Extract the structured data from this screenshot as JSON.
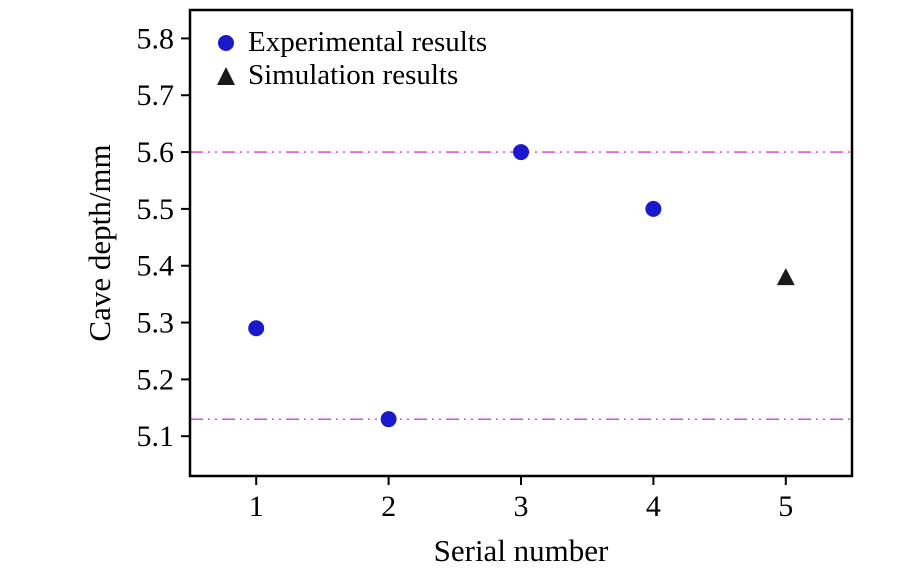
{
  "chart_data": {
    "type": "scatter",
    "title": "",
    "xlabel": "Serial number",
    "ylabel": "Cave depth/mm",
    "xlim": [
      0.5,
      5.5
    ],
    "ylim": [
      5.03,
      5.85
    ],
    "x_ticks": [
      1,
      2,
      3,
      4,
      5
    ],
    "y_ticks": [
      5.1,
      5.2,
      5.3,
      5.4,
      5.5,
      5.6,
      5.7,
      5.8
    ],
    "grid": false,
    "series": [
      {
        "name": "Experimental results",
        "marker": "circle",
        "color": "#1a1acd",
        "x": [
          1,
          2,
          3,
          4
        ],
        "y": [
          5.29,
          5.13,
          5.6,
          5.5
        ]
      },
      {
        "name": "Simulation results",
        "marker": "triangle",
        "color": "#1a1a1a",
        "x": [
          5
        ],
        "y": [
          5.38
        ]
      }
    ],
    "reference_lines": {
      "color": "#cc44cc",
      "style": "dash-dot-dot",
      "values": [
        5.6,
        5.13
      ]
    },
    "legend": {
      "position": "top-left"
    },
    "frame_color": "#000000"
  }
}
